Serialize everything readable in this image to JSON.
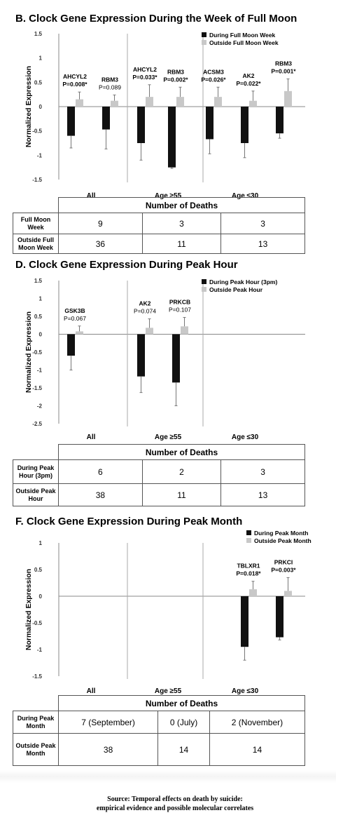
{
  "chart_data": [
    {
      "id": "B",
      "type": "bar",
      "title": "B. Clock Gene Expression During the Week of Full Moon",
      "ylabel": "Normalized Expression",
      "ylim": [
        -1.5,
        1.5
      ],
      "yticks": [
        "1.5",
        "1",
        "0.5",
        "0",
        "-0.5",
        "-1",
        "-1.5"
      ],
      "ytick_values": [
        1.5,
        1,
        0.5,
        0,
        -0.5,
        -1,
        -1.5
      ],
      "legend": {
        "position": "top-right",
        "entries": [
          "During Full Moon Week",
          "Outside Full Moon Week"
        ]
      },
      "groups": [
        "All",
        "Age ≥55",
        "Age ≤30"
      ],
      "series_colors": [
        "#111111",
        "#c8c8c8"
      ],
      "genes": [
        {
          "gene": "AHCYL2",
          "pvalue": "P=0.008*",
          "group": 0,
          "during": -0.6,
          "during_err": 0.25,
          "outside": 0.15,
          "outside_err": 0.15
        },
        {
          "gene": "RBM3",
          "pvalue": "P=0.089",
          "group": 0,
          "during": -0.47,
          "during_err": 0.4,
          "outside": 0.12,
          "outside_err": 0.12
        },
        {
          "gene": "AHCYL2",
          "pvalue": "P=0.033*",
          "group": 1,
          "during": -0.75,
          "during_err": 0.35,
          "outside": 0.2,
          "outside_err": 0.25
        },
        {
          "gene": "RBM3",
          "pvalue": "P=0.002*",
          "group": 1,
          "during": -1.25,
          "during_err": 0.02,
          "outside": 0.2,
          "outside_err": 0.2
        },
        {
          "gene": "ACSM3",
          "pvalue": "P=0.026*",
          "group": 2,
          "during": -0.67,
          "during_err": 0.3,
          "outside": 0.2,
          "outside_err": 0.2
        },
        {
          "gene": "AK2",
          "pvalue": "P=0.022*",
          "group": 2,
          "during": -0.75,
          "during_err": 0.3,
          "outside": 0.12,
          "outside_err": 0.2
        },
        {
          "gene": "RBM3",
          "pvalue": "P=0.001*",
          "group": 2,
          "during": -0.55,
          "during_err": 0.1,
          "outside": 0.32,
          "outside_err": 0.25
        }
      ],
      "table": {
        "header": "Number of Deaths",
        "rows": [
          {
            "label": "Full Moon Week",
            "values": [
              "9",
              "3",
              "3"
            ]
          },
          {
            "label": "Outside Full Moon Week",
            "values": [
              "36",
              "11",
              "13"
            ]
          }
        ]
      }
    },
    {
      "id": "D",
      "type": "bar",
      "title": "D. Clock Gene Expression During Peak Hour",
      "ylabel": "Normalized Expression",
      "ylim": [
        -2.5,
        1.5
      ],
      "yticks": [
        "1.5",
        "1",
        "0.5",
        "0",
        "-0.5",
        "-1",
        "-1.5",
        "-2",
        "-2.5"
      ],
      "ytick_values": [
        1.5,
        1,
        0.5,
        0,
        -0.5,
        -1,
        -1.5,
        -2,
        -2.5
      ],
      "legend": {
        "position": "top-right",
        "entries": [
          "During Peak Hour (3pm)",
          "Outside Peak Hour"
        ]
      },
      "groups": [
        "All",
        "Age ≥55",
        "Age ≤30"
      ],
      "series_colors": [
        "#111111",
        "#c8c8c8"
      ],
      "genes": [
        {
          "gene": "GSK3B",
          "pvalue": "P=0.067",
          "group": 0,
          "during": -0.6,
          "during_err": 0.4,
          "outside": 0.08,
          "outside_err": 0.15
        },
        {
          "gene": "AK2",
          "pvalue": "P=0.074",
          "group": 1,
          "during": -1.18,
          "during_err": 0.45,
          "outside": 0.18,
          "outside_err": 0.25
        },
        {
          "gene": "PRKCB",
          "pvalue": "P=0.107",
          "group": 1,
          "during": -1.35,
          "during_err": 0.65,
          "outside": 0.22,
          "outside_err": 0.25
        }
      ],
      "table": {
        "header": "Number of Deaths",
        "rows": [
          {
            "label": "During Peak Hour (3pm)",
            "values": [
              "6",
              "2",
              "3"
            ]
          },
          {
            "label": "Outside Peak Hour",
            "values": [
              "38",
              "11",
              "13"
            ]
          }
        ]
      }
    },
    {
      "id": "F",
      "type": "bar",
      "title": "F. Clock Gene Expression During Peak Month",
      "ylabel": "Normalized Expression",
      "ylim": [
        -1.5,
        1
      ],
      "yticks": [
        "1",
        "0.5",
        "0",
        "-0.5",
        "-1",
        "-1.5"
      ],
      "ytick_values": [
        1,
        0.5,
        0,
        -0.5,
        -1,
        -1.5
      ],
      "legend": {
        "position": "top-right",
        "entries": [
          "During Peak Month",
          "Outside Peak Month"
        ]
      },
      "groups": [
        "All",
        "Age ≥55",
        "Age ≤30"
      ],
      "series_colors": [
        "#111111",
        "#c8c8c8"
      ],
      "genes": [
        {
          "gene": "TBLXR1",
          "pvalue": "P=0.018*",
          "group": 2,
          "during": -0.95,
          "during_err": 0.25,
          "outside": 0.13,
          "outside_err": 0.15
        },
        {
          "gene": "PRKCI",
          "pvalue": "P=0.003*",
          "group": 2,
          "during": -0.77,
          "during_err": 0.05,
          "outside": 0.1,
          "outside_err": 0.25
        }
      ],
      "table": {
        "header": "Number of Deaths",
        "rows": [
          {
            "label": "During Peak Month",
            "values": [
              "7 (September)",
              "0 (July)",
              "2 (November)"
            ]
          },
          {
            "label": "Outside Peak Month",
            "values": [
              "38",
              "14",
              "14"
            ]
          }
        ]
      }
    }
  ],
  "source": {
    "line1": "Source: Temporal effects on death by suicide:",
    "line2": "empirical evidence and possible molecular correlates"
  }
}
